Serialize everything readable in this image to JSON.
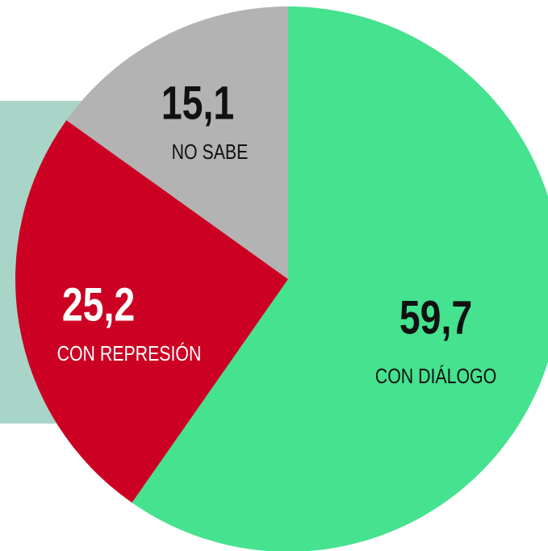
{
  "chart_data": {
    "type": "pie",
    "categories": [
      "CON DIÁLOGO",
      "CON REPRESIÓN",
      "NO SABE"
    ],
    "values": [
      59.7,
      25.2,
      15.1
    ],
    "value_labels": [
      "59,7",
      "25,2",
      "15,1"
    ],
    "colors": [
      "#45e28f",
      "#cc0022",
      "#b3b3b3"
    ],
    "label_colors": [
      "#111111",
      "#ffffff",
      "#111111"
    ]
  }
}
